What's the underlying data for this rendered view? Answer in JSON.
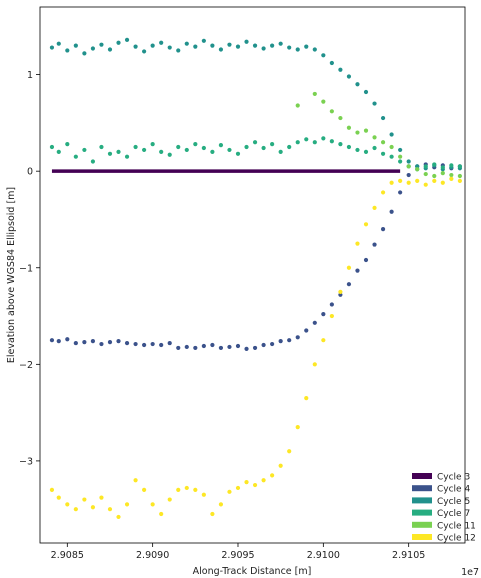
{
  "chart_data": {
    "type": "scatter",
    "xlabel": "Along-Track Distance [m]",
    "ylabel": "Elevation above WGS84 Ellipsoid [m]",
    "x_offset_label": "1e7",
    "xlim": [
      2.90834,
      2.91083
    ],
    "ylim": [
      -3.85,
      1.7
    ],
    "x_ticks": [
      2.9085,
      2.909,
      2.9095,
      2.91,
      2.9105
    ],
    "x_tick_labels": [
      "2.9085",
      "2.9090",
      "2.9095",
      "2.9100",
      "2.9105"
    ],
    "y_ticks": [
      1,
      0,
      -1,
      -2,
      -3
    ],
    "y_tick_labels": [
      "1",
      "0",
      "−1",
      "−2",
      "−3"
    ],
    "grid": false,
    "legend_position": "bottom-right",
    "series": [
      {
        "name": "Cycle 3",
        "color": "#440154",
        "style": "line",
        "x": [
          2.90841,
          2.91045
        ],
        "y": [
          0.0,
          0.0
        ]
      },
      {
        "name": "Cycle 4",
        "color": "#3b528b",
        "x": [
          2.90841,
          2.90845,
          2.9085,
          2.90855,
          2.9086,
          2.90865,
          2.9087,
          2.90875,
          2.9088,
          2.90885,
          2.9089,
          2.90895,
          2.909,
          2.90905,
          2.9091,
          2.90915,
          2.9092,
          2.90925,
          2.9093,
          2.90935,
          2.9094,
          2.90945,
          2.9095,
          2.90955,
          2.9096,
          2.90965,
          2.9097,
          2.90975,
          2.9098,
          2.90985,
          2.9099,
          2.90995,
          2.91,
          2.91005,
          2.9101,
          2.91015,
          2.9102,
          2.91025,
          2.9103,
          2.91035,
          2.9104,
          2.91045,
          2.9105,
          2.91055,
          2.9106,
          2.91065,
          2.9107,
          2.91075,
          2.9108
        ],
        "y": [
          -1.75,
          -1.76,
          -1.74,
          -1.78,
          -1.77,
          -1.76,
          -1.79,
          -1.77,
          -1.76,
          -1.78,
          -1.79,
          -1.8,
          -1.79,
          -1.8,
          -1.78,
          -1.83,
          -1.82,
          -1.83,
          -1.81,
          -1.8,
          -1.83,
          -1.82,
          -1.81,
          -1.84,
          -1.83,
          -1.8,
          -1.79,
          -1.76,
          -1.75,
          -1.72,
          -1.65,
          -1.57,
          -1.48,
          -1.38,
          -1.28,
          -1.17,
          -1.03,
          -0.92,
          -0.76,
          -0.6,
          -0.42,
          -0.22,
          -0.04,
          0.05,
          0.07,
          0.04,
          0.06,
          0.03,
          0.05
        ]
      },
      {
        "name": "Cycle 5",
        "color": "#21918c",
        "x": [
          2.90841,
          2.90845,
          2.9085,
          2.90855,
          2.9086,
          2.90865,
          2.9087,
          2.90875,
          2.9088,
          2.90885,
          2.9089,
          2.90895,
          2.909,
          2.90905,
          2.9091,
          2.90915,
          2.9092,
          2.90925,
          2.9093,
          2.90935,
          2.9094,
          2.90945,
          2.9095,
          2.90955,
          2.9096,
          2.90965,
          2.9097,
          2.90975,
          2.9098,
          2.90985,
          2.9099,
          2.90995,
          2.91,
          2.91005,
          2.9101,
          2.91015,
          2.9102,
          2.91025,
          2.9103,
          2.91035,
          2.9104,
          2.91045,
          2.9105,
          2.91055,
          2.9106,
          2.91065,
          2.9107,
          2.91075,
          2.9108
        ],
        "y": [
          1.28,
          1.32,
          1.25,
          1.3,
          1.22,
          1.27,
          1.31,
          1.26,
          1.33,
          1.36,
          1.29,
          1.24,
          1.3,
          1.33,
          1.28,
          1.25,
          1.32,
          1.29,
          1.35,
          1.3,
          1.26,
          1.31,
          1.29,
          1.34,
          1.3,
          1.27,
          1.3,
          1.32,
          1.28,
          1.26,
          1.29,
          1.26,
          1.2,
          1.12,
          1.05,
          0.98,
          0.9,
          0.82,
          0.7,
          0.55,
          0.38,
          0.22,
          0.1,
          0.05,
          0.03,
          0.06,
          0.02,
          0.04,
          0.03
        ]
      },
      {
        "name": "Cycle 7",
        "color": "#27ad81",
        "x": [
          2.90841,
          2.90845,
          2.9085,
          2.90855,
          2.9086,
          2.90865,
          2.9087,
          2.90875,
          2.9088,
          2.90885,
          2.9089,
          2.90895,
          2.909,
          2.90905,
          2.9091,
          2.90915,
          2.9092,
          2.90925,
          2.9093,
          2.90935,
          2.9094,
          2.90945,
          2.9095,
          2.90955,
          2.9096,
          2.90965,
          2.9097,
          2.90975,
          2.9098,
          2.90985,
          2.9099,
          2.90995,
          2.91,
          2.91005,
          2.9101,
          2.91015,
          2.9102,
          2.91025,
          2.9103,
          2.91035,
          2.9104,
          2.91045,
          2.9105,
          2.91055,
          2.9106,
          2.91065,
          2.9107,
          2.91075,
          2.9108
        ],
        "y": [
          0.25,
          0.2,
          0.28,
          0.15,
          0.22,
          0.1,
          0.25,
          0.18,
          0.2,
          0.15,
          0.25,
          0.22,
          0.28,
          0.2,
          0.17,
          0.25,
          0.22,
          0.28,
          0.24,
          0.2,
          0.27,
          0.22,
          0.18,
          0.25,
          0.3,
          0.24,
          0.28,
          0.2,
          0.25,
          0.3,
          0.33,
          0.3,
          0.34,
          0.31,
          0.28,
          0.25,
          0.22,
          0.2,
          0.24,
          0.18,
          0.15,
          0.1,
          0.05,
          0.02,
          0.05,
          0.07,
          0.04,
          0.06,
          0.05
        ]
      },
      {
        "name": "Cycle 11",
        "color": "#7ad151",
        "x": [
          2.90985,
          2.90995,
          2.91,
          2.91005,
          2.9101,
          2.91015,
          2.9102,
          2.91025,
          2.9103,
          2.91035,
          2.9104,
          2.91045,
          2.9105,
          2.91055,
          2.9106,
          2.91065,
          2.9107,
          2.91075,
          2.9108
        ],
        "y": [
          0.68,
          0.8,
          0.72,
          0.62,
          0.55,
          0.45,
          0.4,
          0.42,
          0.35,
          0.3,
          0.25,
          0.15,
          0.05,
          0.02,
          -0.03,
          -0.05,
          -0.02,
          -0.04,
          -0.05
        ]
      },
      {
        "name": "Cycle 12",
        "color": "#fde725",
        "x": [
          2.90841,
          2.90845,
          2.9085,
          2.90855,
          2.9086,
          2.90865,
          2.9087,
          2.90875,
          2.9088,
          2.90885,
          2.9089,
          2.90895,
          2.909,
          2.90905,
          2.9091,
          2.90915,
          2.9092,
          2.90925,
          2.9093,
          2.90935,
          2.9094,
          2.90945,
          2.9095,
          2.90955,
          2.9096,
          2.90965,
          2.9097,
          2.90975,
          2.9098,
          2.90985,
          2.9099,
          2.90995,
          2.91,
          2.91005,
          2.9101,
          2.91015,
          2.9102,
          2.91025,
          2.9103,
          2.91035,
          2.9104,
          2.91045,
          2.9105,
          2.91055,
          2.9106,
          2.91065,
          2.9107,
          2.91075,
          2.9108
        ],
        "y": [
          -3.3,
          -3.38,
          -3.45,
          -3.5,
          -3.4,
          -3.48,
          -3.38,
          -3.5,
          -3.58,
          -3.45,
          -3.2,
          -3.3,
          -3.45,
          -3.55,
          -3.4,
          -3.3,
          -3.28,
          -3.3,
          -3.35,
          -3.55,
          -3.45,
          -3.32,
          -3.28,
          -3.22,
          -3.25,
          -3.2,
          -3.15,
          -3.05,
          -2.9,
          -2.65,
          -2.35,
          -2.0,
          -1.75,
          -1.5,
          -1.25,
          -1.0,
          -0.75,
          -0.55,
          -0.38,
          -0.22,
          -0.12,
          -0.1,
          -0.12,
          -0.1,
          -0.14,
          -0.1,
          -0.12,
          -0.08,
          -0.1
        ]
      }
    ]
  }
}
